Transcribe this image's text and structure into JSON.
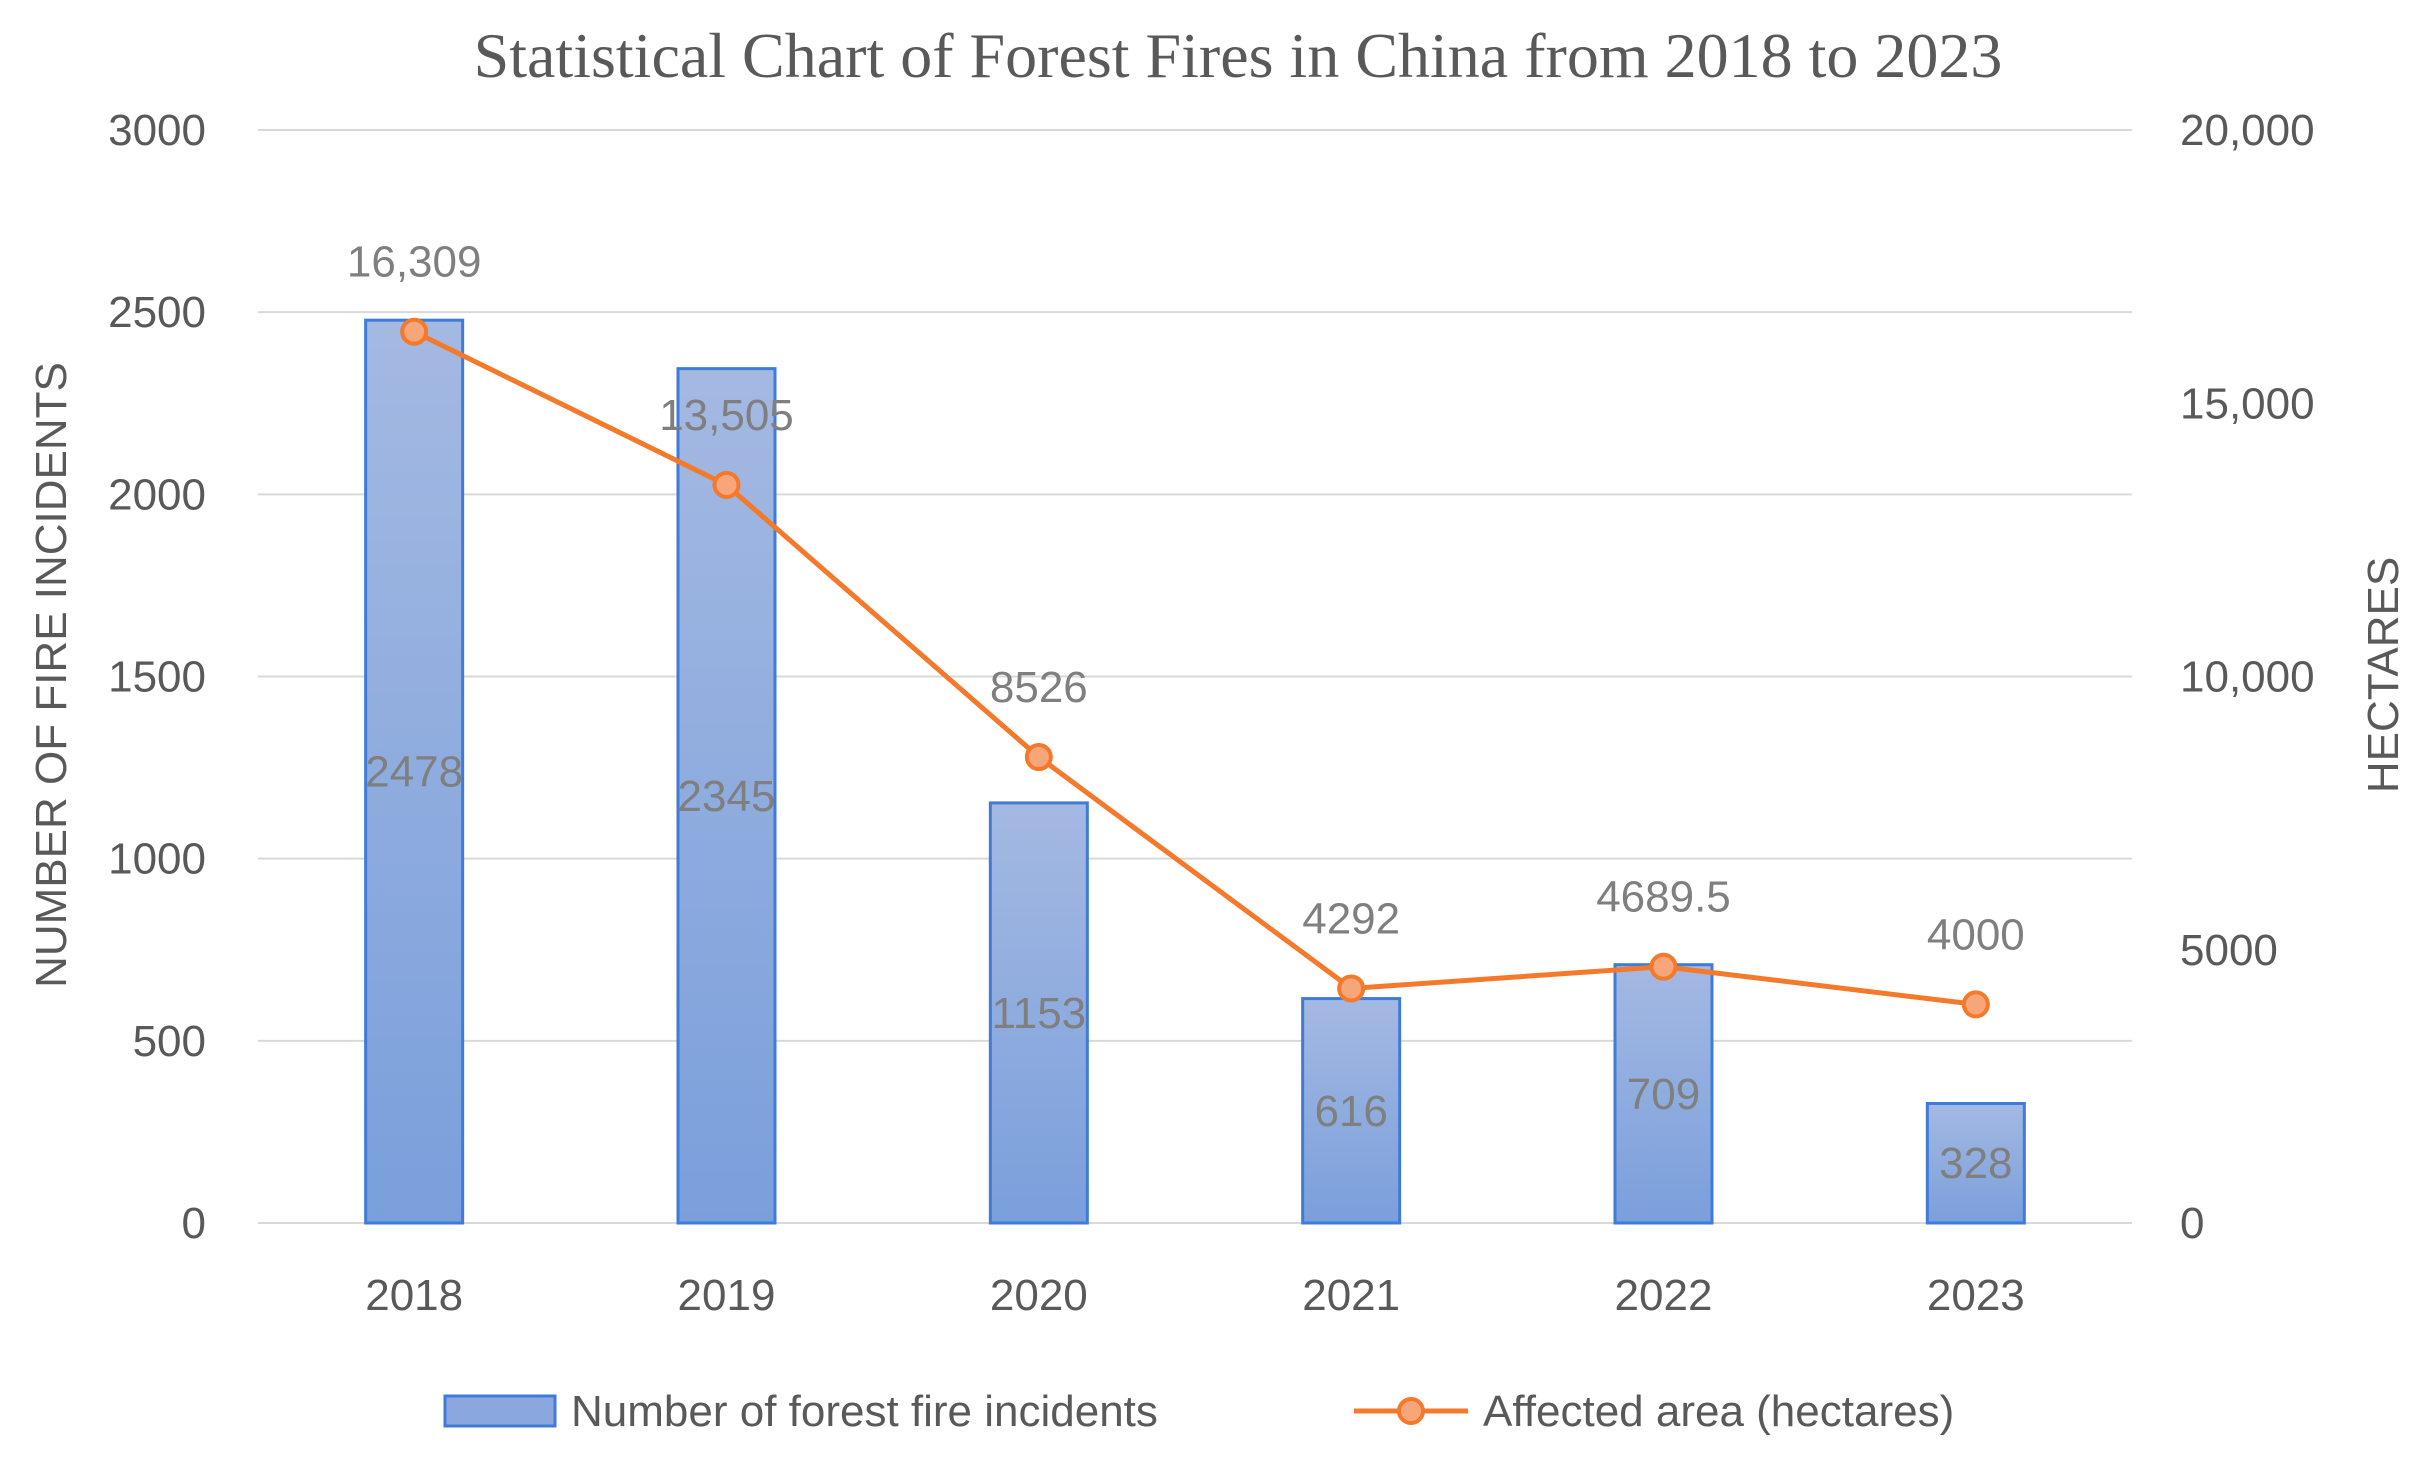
{
  "chart_data": {
    "type": "bar",
    "title": "Statistical Chart of Forest Fires in China from 2018 to 2023",
    "categories": [
      "2018",
      "2019",
      "2020",
      "2021",
      "2022",
      "2023"
    ],
    "series": [
      {
        "name": "Number of forest fire incidents",
        "type": "bar",
        "axis": "left",
        "values": [
          2478,
          2345,
          1153,
          616,
          709,
          328
        ],
        "data_labels": [
          "2478",
          "2345",
          "1153",
          "616",
          "709",
          "328"
        ],
        "color": "#8BA8DE",
        "border_color": "#3F7BD8"
      },
      {
        "name": "Affected area (hectares)",
        "type": "line",
        "axis": "right",
        "values": [
          16309,
          13505,
          8526,
          4292,
          4689.5,
          4000
        ],
        "data_labels": [
          "16,309",
          "13,505",
          "8526",
          "4292",
          "4689.5",
          "4000"
        ],
        "color": "#F5792A",
        "marker_fill": "#F7A67A"
      }
    ],
    "y_left": {
      "label": "NUMBER OF FIRE INCIDENTS",
      "range": [
        0,
        3000
      ],
      "ticks": [
        0,
        500,
        1000,
        1500,
        2000,
        2500,
        3000
      ],
      "tick_labels": [
        "0",
        "500",
        "1000",
        "1500",
        "2000",
        "2500",
        "3000"
      ]
    },
    "y_right": {
      "label": "HECTARES",
      "range": [
        0,
        20000
      ],
      "ticks": [
        0,
        5000,
        10000,
        15000,
        20000
      ],
      "tick_labels": [
        "0",
        "5000",
        "10,000",
        "15,000",
        "20,000"
      ]
    },
    "grid": true,
    "legend_position": "bottom",
    "colors": {
      "grid": "#D9D9D9",
      "text": "#595959",
      "title": "#595959"
    }
  }
}
